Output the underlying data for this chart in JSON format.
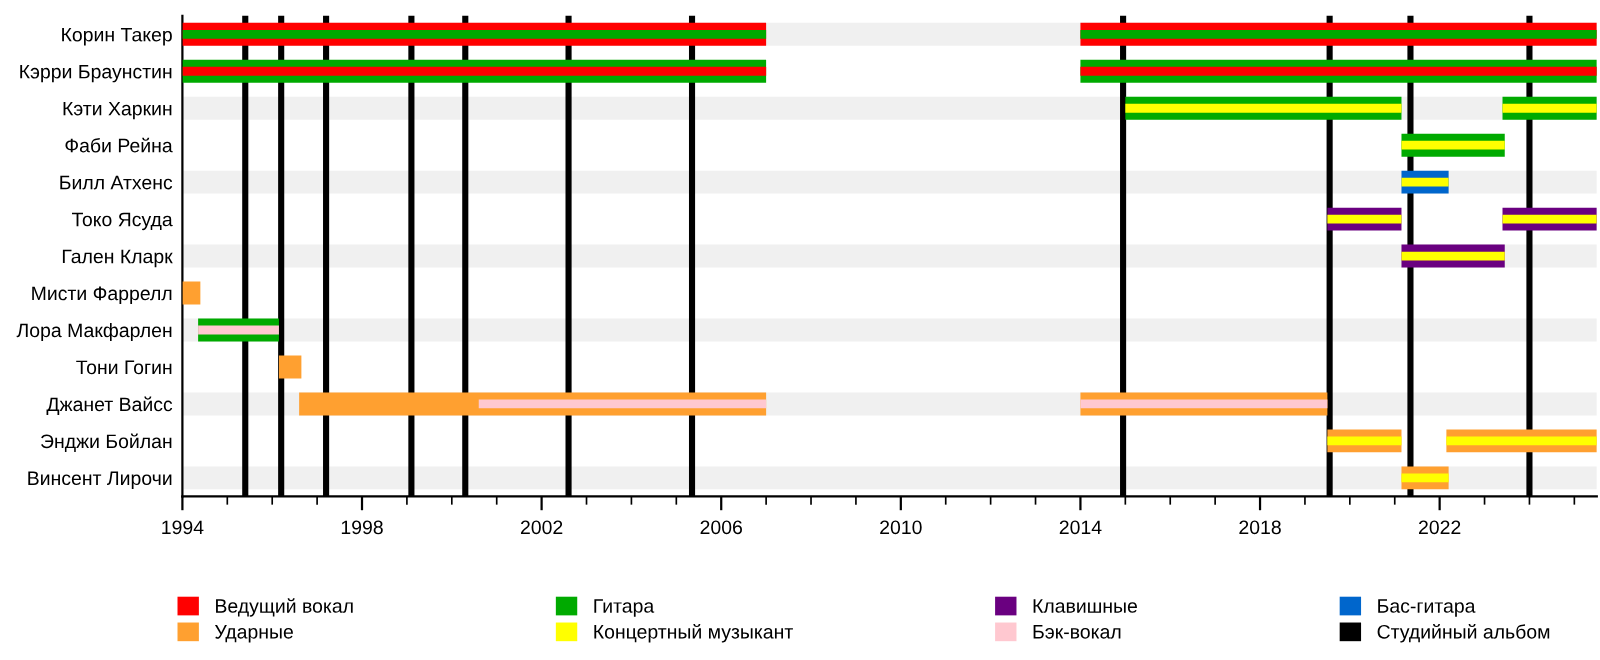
{
  "chart_data": {
    "type": "bar",
    "orientation": "horizontal",
    "legend": "bottom",
    "grid": false,
    "categories": [
      "Корин Такер",
      "Кэрри Браунстин",
      "Кэти Харкин",
      "Фаби Рейна",
      "Билл Атхенс",
      "Токо Ясуда",
      "Гален Кларк",
      "Мисти Фаррелл",
      "Лора Макфарлен",
      "Тони Гогин",
      "Джанет Вайсс",
      "Энджи Бойлан",
      "Винсент Лирочи"
    ],
    "xlim": [
      1994,
      2025.5
    ],
    "xticks": [
      1994,
      1998,
      2002,
      2006,
      2010,
      2014,
      2018,
      2022
    ],
    "series": [
      {
        "name": "Ведущий вокал",
        "color": "#ff0000",
        "base": [
          1994,
          null,
          null,
          null,
          null,
          null,
          null,
          null,
          null,
          null,
          null,
          null,
          null
        ],
        "values": [
          13,
          null,
          null,
          null,
          null,
          null,
          null,
          null,
          null,
          null,
          null,
          null,
          null
        ]
      },
      {
        "name": "Гитара",
        "color": "#00aa00",
        "base": [
          null,
          1994,
          2015,
          2021.15,
          null,
          null,
          null,
          null,
          1994.35,
          null,
          null,
          null,
          null
        ],
        "values": [
          null,
          13,
          6.15,
          2.3,
          null,
          null,
          null,
          null,
          1.8,
          null,
          null,
          null,
          null
        ]
      },
      {
        "name": "Клавишные",
        "color": "#6a0080",
        "base": [
          null,
          null,
          null,
          null,
          null,
          2019.5,
          2021.15,
          null,
          null,
          null,
          null,
          null,
          null
        ],
        "values": [
          null,
          null,
          null,
          null,
          null,
          1.65,
          2.3,
          null,
          null,
          null,
          null,
          null,
          null
        ]
      },
      {
        "name": "Бас-гитара",
        "color": "#0066cc",
        "base": [
          null,
          null,
          null,
          null,
          2021.15,
          null,
          null,
          null,
          null,
          null,
          null,
          null,
          null
        ],
        "values": [
          null,
          null,
          null,
          null,
          1.05,
          null,
          null,
          null,
          null,
          null,
          null,
          null,
          null
        ]
      },
      {
        "name": "Ударные",
        "color": "#ffa030",
        "base": [
          null,
          null,
          null,
          null,
          null,
          null,
          null,
          1994,
          null,
          1996.15,
          1996.6,
          2019.5,
          2021.15
        ],
        "values": [
          null,
          null,
          null,
          null,
          null,
          null,
          null,
          0.4,
          null,
          0.5,
          10.4,
          1.65,
          1.05
        ]
      },
      {
        "color": "#ff0000",
        "base": [
          null,
          1994,
          null,
          null,
          null,
          null,
          null,
          null,
          null,
          null,
          null,
          null,
          null
        ],
        "values": [
          null,
          13,
          null,
          null,
          null,
          null,
          null,
          null,
          null,
          null,
          null,
          null,
          null
        ]
      },
      {
        "color": "#00aa00",
        "base": [
          1994,
          null,
          null,
          null,
          null,
          null,
          null,
          null,
          null,
          null,
          null,
          null,
          null
        ],
        "values": [
          13,
          null,
          null,
          null,
          null,
          null,
          null,
          null,
          null,
          null,
          null,
          null,
          null
        ]
      },
      {
        "name": "Концертный музыкант",
        "color": "#ffff00",
        "base": [
          null,
          null,
          2015,
          2021.15,
          2021.15,
          2019.5,
          2021.15,
          null,
          null,
          null,
          null,
          2019.5,
          2021.15
        ],
        "values": [
          null,
          null,
          6.15,
          2.3,
          1.05,
          1.65,
          2.3,
          null,
          null,
          null,
          null,
          1.65,
          1.05
        ]
      },
      {
        "name": "Бэк-вокал",
        "color": "#ffc8d0",
        "base": [
          null,
          null,
          null,
          null,
          null,
          null,
          null,
          null,
          1994.35,
          null,
          2000.6,
          null,
          null
        ],
        "values": [
          null,
          null,
          null,
          null,
          null,
          null,
          null,
          null,
          1.8,
          null,
          6.4,
          null,
          null
        ]
      },
      {
        "color": "#ff0000",
        "base": [
          2014,
          null,
          null,
          null,
          null,
          null,
          null,
          null,
          null,
          null,
          null,
          null,
          null
        ],
        "values": [
          11.5,
          null,
          null,
          null,
          null,
          null,
          null,
          null,
          null,
          null,
          null,
          null,
          null
        ]
      },
      {
        "color": "#00aa00",
        "base": [
          null,
          2014,
          2023.4,
          null,
          null,
          null,
          null,
          null,
          null,
          null,
          null,
          null,
          null
        ],
        "values": [
          null,
          11.5,
          2.1,
          null,
          null,
          null,
          null,
          null,
          null,
          null,
          null,
          null,
          null
        ]
      },
      {
        "color": "#6a0080",
        "base": [
          null,
          null,
          null,
          null,
          null,
          2023.4,
          null,
          null,
          null,
          null,
          null,
          null,
          null
        ],
        "values": [
          null,
          null,
          null,
          null,
          null,
          2.1,
          null,
          null,
          null,
          null,
          null,
          null,
          null
        ]
      },
      {
        "color": "#ffa030",
        "base": [
          null,
          null,
          null,
          null,
          null,
          null,
          null,
          null,
          null,
          null,
          2014,
          2022.15,
          null
        ],
        "values": [
          null,
          null,
          null,
          null,
          null,
          null,
          null,
          null,
          null,
          null,
          5.5,
          3.35,
          null
        ]
      },
      {
        "color": "#00aa00",
        "base": [
          2014,
          null,
          null,
          null,
          null,
          null,
          null,
          null,
          null,
          null,
          null,
          null,
          null
        ],
        "values": [
          11.5,
          null,
          null,
          null,
          null,
          null,
          null,
          null,
          null,
          null,
          null,
          null,
          null
        ]
      },
      {
        "color": "#ff0000",
        "base": [
          null,
          2014,
          null,
          null,
          null,
          null,
          null,
          null,
          null,
          null,
          null,
          null,
          null
        ],
        "values": [
          null,
          11.5,
          null,
          null,
          null,
          null,
          null,
          null,
          null,
          null,
          null,
          null,
          null
        ]
      },
      {
        "color": "#ffff00",
        "base": [
          null,
          null,
          2023.4,
          null,
          null,
          2023.4,
          null,
          null,
          null,
          null,
          null,
          2022.15,
          null
        ],
        "values": [
          null,
          null,
          2.1,
          null,
          null,
          2.1,
          null,
          null,
          null,
          null,
          null,
          3.35,
          null
        ]
      },
      {
        "color": "#ffc8d0",
        "base": [
          null,
          null,
          null,
          null,
          null,
          null,
          null,
          null,
          null,
          null,
          2014,
          null,
          null
        ],
        "values": [
          null,
          null,
          null,
          null,
          null,
          null,
          null,
          null,
          null,
          null,
          5.5,
          null,
          null
        ]
      }
    ],
    "ref_lines": [
      {
        "axis": "x",
        "value": 1995.4,
        "label": "Студийный альбом",
        "color": "#000000"
      },
      {
        "axis": "x",
        "value": 1996.2,
        "color": "#000000"
      },
      {
        "axis": "x",
        "value": 1997.2,
        "color": "#000000"
      },
      {
        "axis": "x",
        "value": 1999.1,
        "color": "#000000"
      },
      {
        "axis": "x",
        "value": 2000.3,
        "color": "#000000"
      },
      {
        "axis": "x",
        "value": 2002.6,
        "color": "#000000"
      },
      {
        "axis": "x",
        "value": 2005.35,
        "color": "#000000"
      },
      {
        "axis": "x",
        "value": 2014.95,
        "color": "#000000"
      },
      {
        "axis": "x",
        "value": 2019.55,
        "color": "#000000"
      },
      {
        "axis": "x",
        "value": 2021.35,
        "color": "#000000"
      },
      {
        "axis": "x",
        "value": 2024.0,
        "color": "#000000"
      }
    ]
  }
}
